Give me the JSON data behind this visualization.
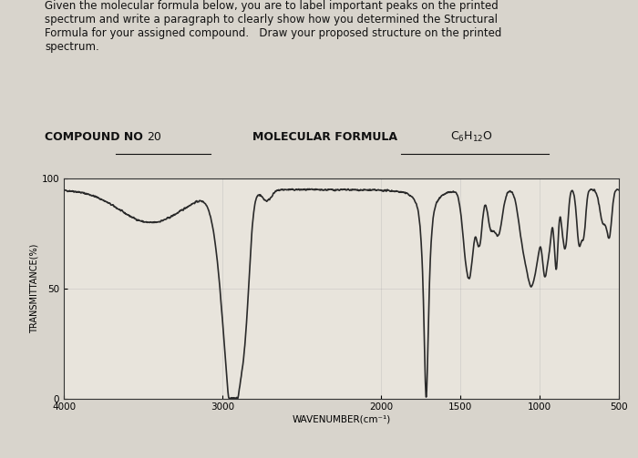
{
  "title_text": "Given the molecular formula below, you are to label important peaks on the  printed\nspectrum and write a paragraph to clearly show how you determined the  Structural\nFormula for your assigned compound.   Draw your proposed structure on the printed\nspectrum.",
  "compound_no": "20",
  "molecular_formula": "C₆H₁₂O",
  "ylabel": "TRANSMITTANCE(%)",
  "xlabel": "WAVENUMBER(cm⁻¹)",
  "xmin": 4000,
  "xmax": 500,
  "ymin": 0,
  "ymax": 100,
  "yticks": [
    0,
    50,
    100
  ],
  "xticks": [
    4000,
    3000,
    2000,
    1500,
    1000,
    500
  ],
  "background_color": "#d8d4cc",
  "plot_bg_color": "#e8e4dc",
  "line_color": "#2a2a2a",
  "line_width": 1.2
}
